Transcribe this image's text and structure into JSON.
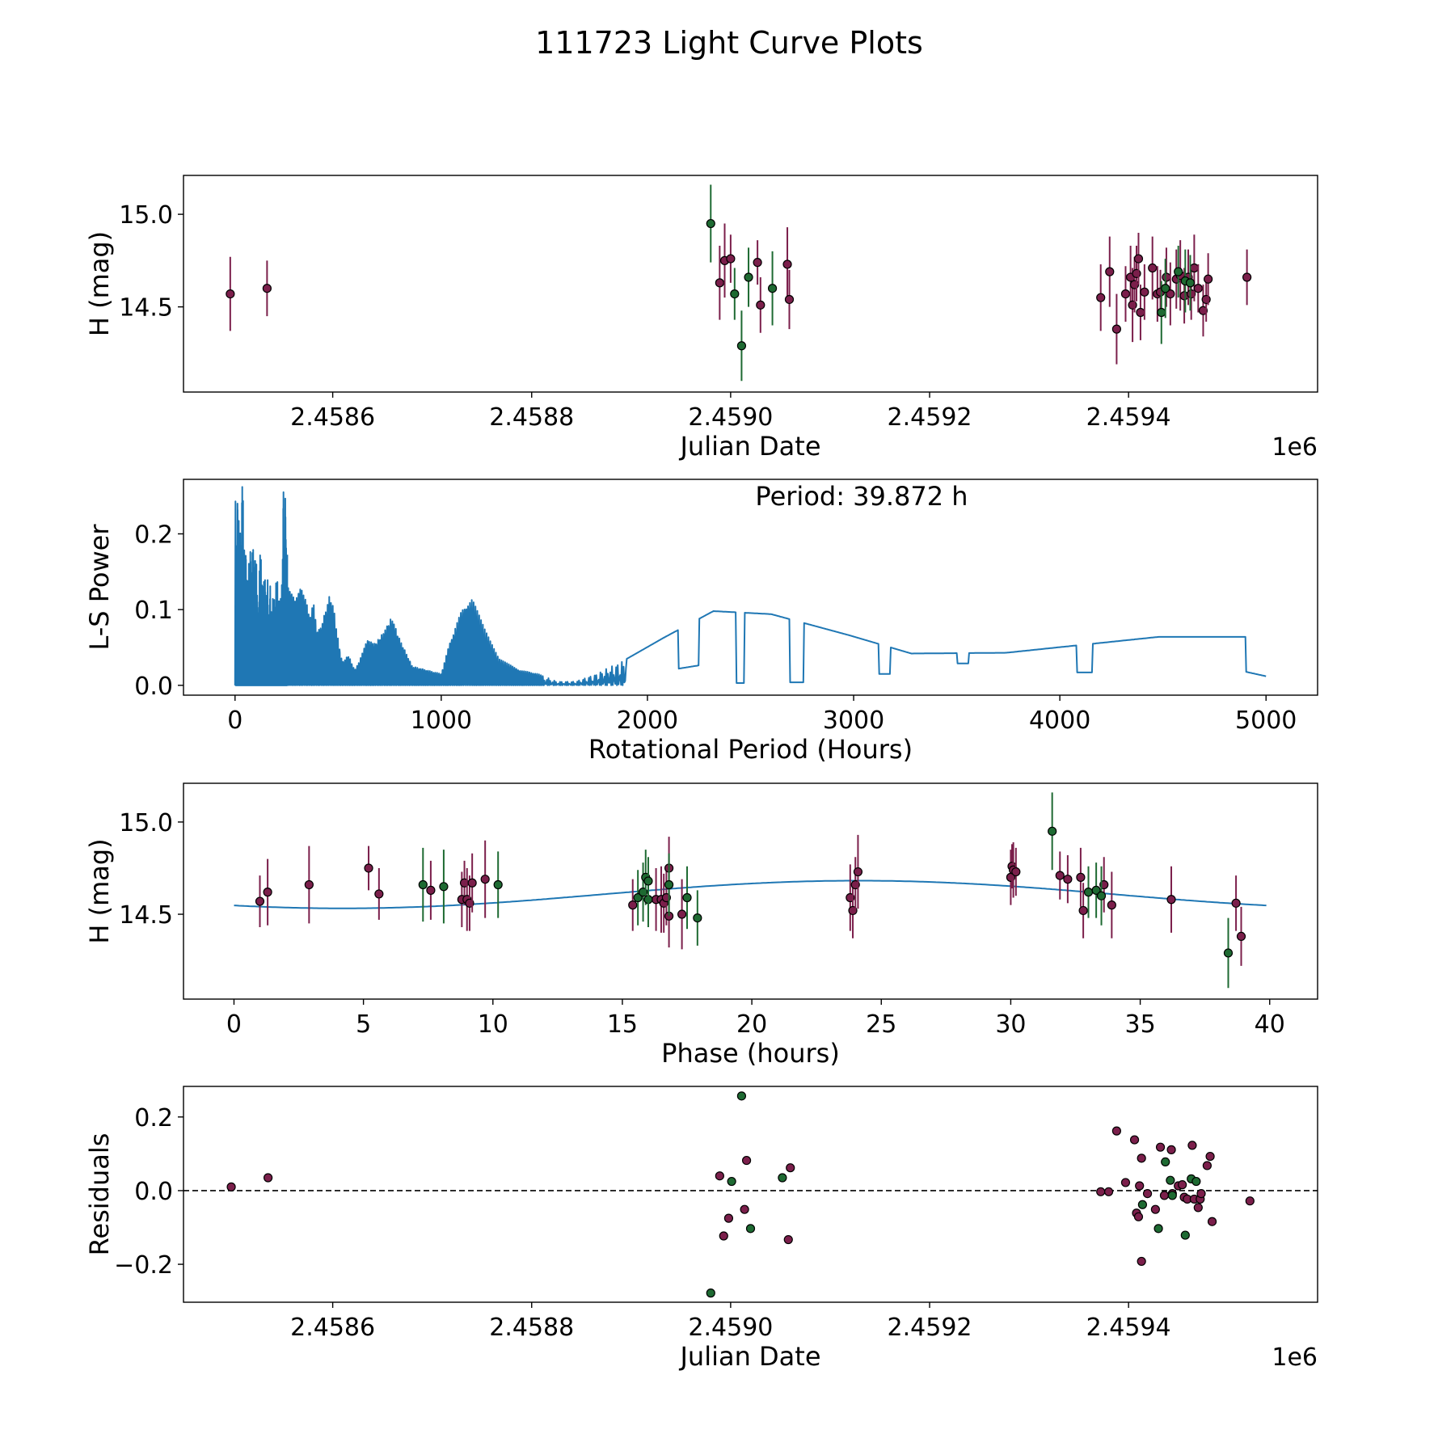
{
  "title": "111723 Light Curve Plots",
  "colors": {
    "magenta": "#7b1f4b",
    "green": "#1e6a32",
    "line": "#1f77b4",
    "edge": "#000000"
  },
  "chart_data": [
    {
      "id": "lc",
      "type": "scatter",
      "xlabel": "Julian Date",
      "ylabel": "H (mag)",
      "x_offset_label": "1e6",
      "xlim": [
        2.45845,
        2.45959
      ],
      "ylim": [
        14.04,
        15.21
      ],
      "xticks": [
        2.4586,
        2.4588,
        2.459,
        2.4592,
        2.4594
      ],
      "xtick_labels": [
        "2.4586",
        "2.4588",
        "2.4590",
        "2.4592",
        "2.4594"
      ],
      "yticks": [
        14.5,
        15.0
      ],
      "ytick_labels": [
        "14.5",
        "15.0"
      ],
      "series": [
        {
          "name": "magenta",
          "color": "#7b1f4b",
          "points": [
            [
              2.458497,
              14.57,
              0.2
            ],
            [
              2.458534,
              14.6,
              0.15
            ],
            [
              2.458989,
              14.63,
              0.2
            ],
            [
              2.458994,
              14.75,
              0.2
            ],
            [
              2.459,
              14.76,
              0.13
            ],
            [
              2.459027,
              14.74,
              0.12
            ],
            [
              2.45903,
              14.51,
              0.15
            ],
            [
              2.459057,
              14.73,
              0.2
            ],
            [
              2.459059,
              14.54,
              0.16
            ],
            [
              2.459372,
              14.55,
              0.18
            ],
            [
              2.459381,
              14.69,
              0.19
            ],
            [
              2.459388,
              14.38,
              0.19
            ],
            [
              2.459397,
              14.57,
              0.15
            ],
            [
              2.459402,
              14.66,
              0.17
            ],
            [
              2.459404,
              14.51,
              0.2
            ],
            [
              2.459406,
              14.62,
              0.15
            ],
            [
              2.459408,
              14.68,
              0.15
            ],
            [
              2.45941,
              14.76,
              0.14
            ],
            [
              2.459412,
              14.47,
              0.15
            ],
            [
              2.459416,
              14.58,
              0.15
            ],
            [
              2.459424,
              14.71,
              0.17
            ],
            [
              2.459429,
              14.57,
              0.15
            ],
            [
              2.459432,
              14.58,
              0.12
            ],
            [
              2.459438,
              14.66,
              0.16
            ],
            [
              2.459442,
              14.57,
              0.17
            ],
            [
              2.459448,
              14.65,
              0.16
            ],
            [
              2.459452,
              14.67,
              0.19
            ],
            [
              2.459456,
              14.56,
              0.15
            ],
            [
              2.45946,
              14.66,
              0.15
            ],
            [
              2.459463,
              14.57,
              0.14
            ],
            [
              2.459466,
              14.71,
              0.18
            ],
            [
              2.45947,
              14.6,
              0.13
            ],
            [
              2.459475,
              14.48,
              0.14
            ],
            [
              2.459478,
              14.54,
              0.12
            ],
            [
              2.45948,
              14.65,
              0.14
            ],
            [
              2.459519,
              14.66,
              0.15
            ]
          ]
        },
        {
          "name": "green",
          "color": "#1e6a32",
          "points": [
            [
              2.45898,
              14.95,
              0.21
            ],
            [
              2.459004,
              14.57,
              0.14
            ],
            [
              2.459011,
              14.29,
              0.19
            ],
            [
              2.459018,
              14.66,
              0.16
            ],
            [
              2.459042,
              14.6,
              0.2
            ],
            [
              2.459433,
              14.47,
              0.17
            ],
            [
              2.459437,
              14.6,
              0.16
            ],
            [
              2.45945,
              14.69,
              0.14
            ],
            [
              2.459457,
              14.64,
              0.17
            ],
            [
              2.459462,
              14.63,
              0.15
            ]
          ]
        }
      ]
    },
    {
      "id": "ls",
      "type": "line",
      "xlabel": "Rotational Period (Hours)",
      "ylabel": "L-S Power",
      "xlim": [
        -250,
        5250
      ],
      "ylim": [
        -0.013,
        0.272
      ],
      "xticks": [
        0,
        1000,
        2000,
        3000,
        4000,
        5000
      ],
      "xtick_labels": [
        "0",
        "1000",
        "2000",
        "3000",
        "4000",
        "5000"
      ],
      "yticks": [
        0.0,
        0.1,
        0.2
      ],
      "ytick_labels": [
        "0.0",
        "0.1",
        "0.2"
      ],
      "annotation": "Period: 39.872 h",
      "envelope": [
        [
          270,
          0.13
        ],
        [
          290,
          0.11
        ],
        [
          310,
          0.13
        ],
        [
          340,
          0.12
        ],
        [
          360,
          0.09
        ],
        [
          380,
          0.11
        ],
        [
          400,
          0.07
        ],
        [
          420,
          0.08
        ],
        [
          440,
          0.1
        ],
        [
          460,
          0.12
        ],
        [
          480,
          0.1
        ],
        [
          500,
          0.06
        ],
        [
          520,
          0.03
        ],
        [
          550,
          0.04
        ],
        [
          580,
          0.02
        ],
        [
          600,
          0.03
        ],
        [
          640,
          0.06
        ],
        [
          680,
          0.055
        ],
        [
          720,
          0.07
        ],
        [
          760,
          0.09
        ],
        [
          800,
          0.06
        ],
        [
          860,
          0.025
        ],
        [
          930,
          0.02
        ],
        [
          1000,
          0.015
        ],
        [
          1040,
          0.055
        ],
        [
          1100,
          0.1
        ],
        [
          1150,
          0.115
        ],
        [
          1210,
          0.075
        ],
        [
          1280,
          0.035
        ],
        [
          1380,
          0.02
        ],
        [
          1470,
          0.015
        ],
        [
          1560,
          0.005
        ],
        [
          1650,
          0.005
        ],
        [
          1750,
          0.015
        ],
        [
          1900,
          0.035
        ],
        [
          2080,
          0.063
        ],
        [
          2320,
          0.098
        ],
        [
          2600,
          0.094
        ],
        [
          2980,
          0.066
        ],
        [
          3280,
          0.042
        ],
        [
          3740,
          0.043
        ],
        [
          4480,
          0.064
        ]
      ]
    },
    {
      "id": "phase",
      "type": "scatter",
      "xlabel": "Phase (hours)",
      "ylabel": "H (mag)",
      "xlim": [
        -1.95,
        41.85
      ],
      "ylim": [
        14.04,
        15.21
      ],
      "xticks": [
        0,
        5,
        10,
        15,
        20,
        25,
        30,
        35,
        40
      ],
      "xtick_labels": [
        "0",
        "5",
        "10",
        "15",
        "20",
        "25",
        "30",
        "35",
        "40"
      ],
      "yticks": [
        14.5,
        15.0
      ],
      "ytick_labels": [
        "14.5",
        "15.0"
      ],
      "model": {
        "period": 39.872,
        "mean": 14.607,
        "amplitude": 0.075,
        "phase_offset": -0.355
      },
      "series": [
        {
          "name": "magenta",
          "color": "#7b1f4b",
          "points": [
            [
              1.0,
              14.57,
              0.14
            ],
            [
              1.3,
              14.62,
              0.18
            ],
            [
              2.9,
              14.66,
              0.21
            ],
            [
              5.2,
              14.75,
              0.12
            ],
            [
              5.6,
              14.61,
              0.14
            ],
            [
              7.6,
              14.63,
              0.16
            ],
            [
              8.8,
              14.58,
              0.15
            ],
            [
              8.9,
              14.67,
              0.12
            ],
            [
              9.0,
              14.58,
              0.17
            ],
            [
              9.1,
              14.56,
              0.15
            ],
            [
              9.2,
              14.67,
              0.16
            ],
            [
              9.7,
              14.69,
              0.21
            ],
            [
              15.4,
              14.55,
              0.14
            ],
            [
              16.3,
              14.58,
              0.17
            ],
            [
              16.5,
              14.58,
              0.18
            ],
            [
              16.6,
              14.56,
              0.16
            ],
            [
              16.7,
              14.59,
              0.15
            ],
            [
              16.8,
              14.75,
              0.17
            ],
            [
              16.8,
              14.49,
              0.17
            ],
            [
              17.3,
              14.5,
              0.19
            ],
            [
              23.8,
              14.59,
              0.18
            ],
            [
              23.9,
              14.52,
              0.15
            ],
            [
              24.0,
              14.66,
              0.15
            ],
            [
              24.1,
              14.73,
              0.2
            ],
            [
              30.0,
              14.7,
              0.15
            ],
            [
              30.05,
              14.76,
              0.12
            ],
            [
              30.1,
              14.74,
              0.15
            ],
            [
              30.2,
              14.73,
              0.13
            ],
            [
              31.9,
              14.71,
              0.13
            ],
            [
              32.2,
              14.69,
              0.13
            ],
            [
              32.7,
              14.7,
              0.16
            ],
            [
              32.8,
              14.52,
              0.15
            ],
            [
              33.6,
              14.66,
              0.15
            ],
            [
              33.9,
              14.55,
              0.18
            ],
            [
              36.2,
              14.58,
              0.18
            ],
            [
              38.7,
              14.56,
              0.15
            ],
            [
              38.9,
              14.38,
              0.16
            ]
          ]
        },
        {
          "name": "green",
          "color": "#1e6a32",
          "points": [
            [
              7.3,
              14.66,
              0.2
            ],
            [
              8.1,
              14.65,
              0.2
            ],
            [
              10.2,
              14.66,
              0.18
            ],
            [
              15.6,
              14.59,
              0.15
            ],
            [
              15.8,
              14.62,
              0.16
            ],
            [
              15.9,
              14.7,
              0.15
            ],
            [
              16.0,
              14.58,
              0.15
            ],
            [
              16.0,
              14.68,
              0.13
            ],
            [
              16.8,
              14.66,
              0.17
            ],
            [
              17.5,
              14.59,
              0.17
            ],
            [
              17.9,
              14.48,
              0.15
            ],
            [
              31.6,
              14.95,
              0.21
            ],
            [
              33.0,
              14.62,
              0.14
            ],
            [
              33.3,
              14.63,
              0.15
            ],
            [
              33.5,
              14.6,
              0.16
            ],
            [
              38.4,
              14.29,
              0.19
            ]
          ]
        }
      ]
    },
    {
      "id": "resid",
      "type": "scatter",
      "xlabel": "Julian Date",
      "ylabel": "Residuals",
      "x_offset_label": "1e6",
      "xlim": [
        2.45845,
        2.45959
      ],
      "ylim": [
        -0.303,
        0.283
      ],
      "xticks": [
        2.4586,
        2.4588,
        2.459,
        2.4592,
        2.4594
      ],
      "xtick_labels": [
        "2.4586",
        "2.4588",
        "2.4590",
        "2.4592",
        "2.4594"
      ],
      "yticks": [
        -0.2,
        0.0,
        0.2
      ],
      "ytick_labels": [
        "−0.2",
        "0.0",
        "0.2"
      ],
      "hline": 0.0,
      "series": [
        {
          "name": "magenta",
          "color": "#7b1f4b",
          "points": [
            [
              2.458498,
              0.01
            ],
            [
              2.458535,
              0.035
            ],
            [
              2.458989,
              0.04
            ],
            [
              2.458993,
              -0.123
            ],
            [
              2.458998,
              -0.075
            ],
            [
              2.459014,
              -0.051
            ],
            [
              2.459016,
              0.082
            ],
            [
              2.459058,
              -0.133
            ],
            [
              2.45906,
              0.062
            ],
            [
              2.459372,
              -0.003
            ],
            [
              2.45938,
              -0.003
            ],
            [
              2.459388,
              0.162
            ],
            [
              2.459397,
              0.022
            ],
            [
              2.459406,
              0.138
            ],
            [
              2.459408,
              -0.061
            ],
            [
              2.45941,
              -0.071
            ],
            [
              2.459411,
              0.013
            ],
            [
              2.459413,
              0.088
            ],
            [
              2.459413,
              -0.192
            ],
            [
              2.459419,
              -0.008
            ],
            [
              2.459427,
              -0.051
            ],
            [
              2.459432,
              0.118
            ],
            [
              2.459436,
              -0.013
            ],
            [
              2.459443,
              0.111
            ],
            [
              2.459444,
              -0.008
            ],
            [
              2.45945,
              0.013
            ],
            [
              2.459454,
              0.016
            ],
            [
              2.459456,
              -0.018
            ],
            [
              2.459459,
              -0.023
            ],
            [
              2.459464,
              0.123
            ],
            [
              2.459466,
              -0.023
            ],
            [
              2.45947,
              -0.046
            ],
            [
              2.459472,
              -0.023
            ],
            [
              2.459473,
              -0.008
            ],
            [
              2.459479,
              0.068
            ],
            [
              2.459482,
              0.093
            ],
            [
              2.459484,
              -0.084
            ],
            [
              2.459522,
              -0.028
            ]
          ]
        },
        {
          "name": "green",
          "color": "#1e6a32",
          "points": [
            [
              2.45898,
              -0.278
            ],
            [
              2.459001,
              0.025
            ],
            [
              2.459011,
              0.257
            ],
            [
              2.45902,
              -0.103
            ],
            [
              2.459052,
              0.035
            ],
            [
              2.459414,
              -0.038
            ],
            [
              2.45943,
              -0.103
            ],
            [
              2.459437,
              0.078
            ],
            [
              2.459442,
              0.028
            ],
            [
              2.459444,
              -0.013
            ],
            [
              2.459457,
              -0.121
            ],
            [
              2.459463,
              0.032
            ],
            [
              2.459468,
              0.025
            ]
          ]
        }
      ]
    }
  ]
}
